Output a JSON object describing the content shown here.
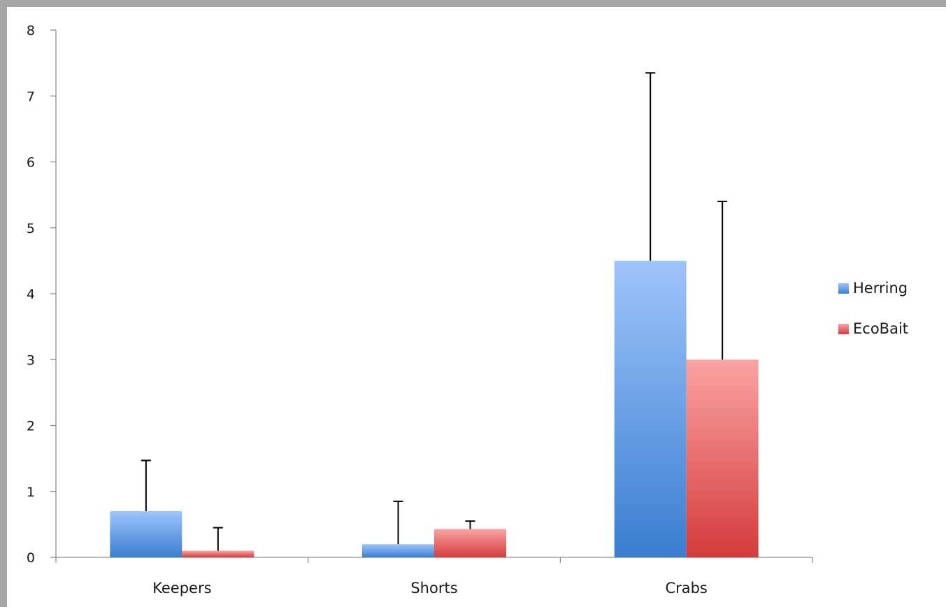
{
  "chart_data": {
    "type": "bar",
    "title": "",
    "xlabel": "",
    "ylabel": "",
    "categories": [
      "Keepers",
      "Shorts",
      "Crabs"
    ],
    "ylim": [
      0,
      8
    ],
    "yticks": [
      "0",
      "1",
      "2",
      "3",
      "4",
      "5",
      "6",
      "7",
      "8"
    ],
    "grid": false,
    "legend_position": "right",
    "series": [
      {
        "name": "Herring",
        "values": [
          0.7,
          0.2,
          4.5
        ],
        "error": [
          0.77,
          0.65,
          2.85
        ],
        "color_top": "#9ec4fb",
        "color_bottom": "#3a7ed0",
        "legend_color": "#4a86d8"
      },
      {
        "name": "EcoBait",
        "values": [
          0.1,
          0.43,
          3.0
        ],
        "error": [
          0.35,
          0.12,
          2.4
        ],
        "color_top": "#fba3a3",
        "color_bottom": "#d43b3b",
        "legend_color": "#d84a4a"
      }
    ]
  }
}
